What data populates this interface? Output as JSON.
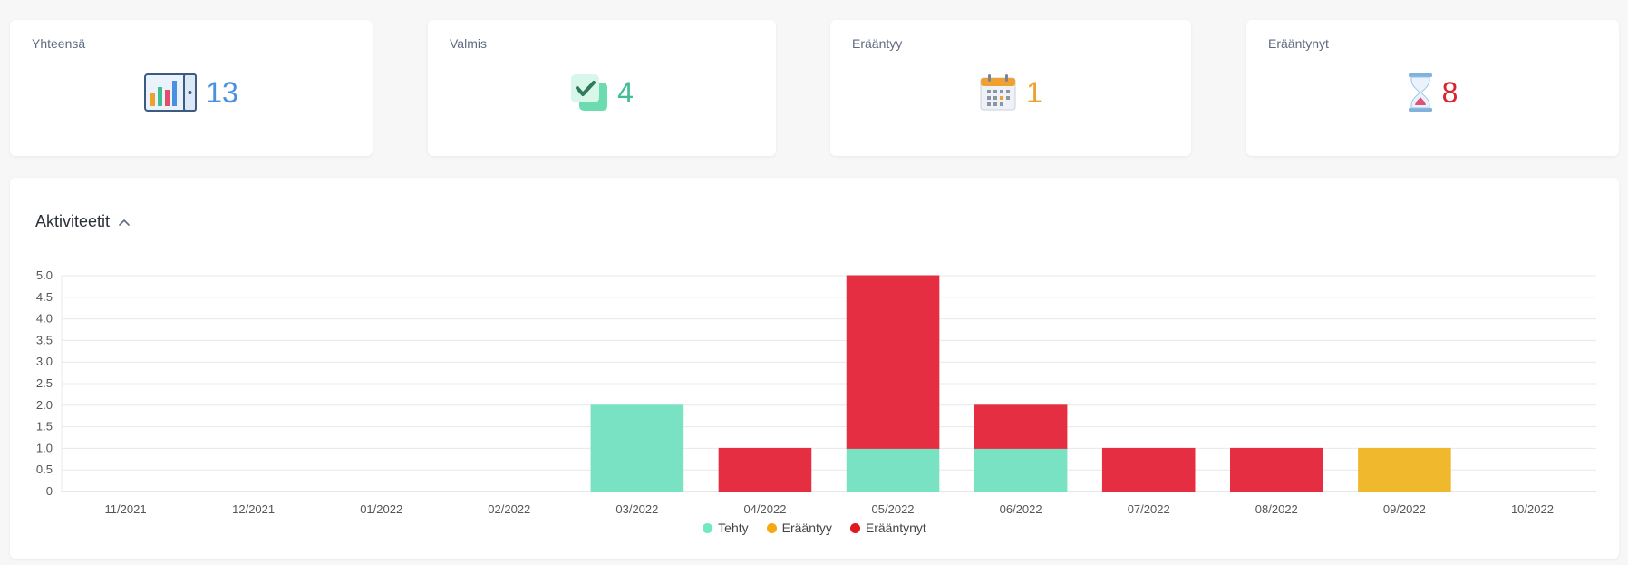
{
  "stats": [
    {
      "title": "Yhteensä",
      "value": "13",
      "color": "#4a90e2",
      "icon": "bar-chart-icon"
    },
    {
      "title": "Valmis",
      "value": "4",
      "color": "#3fbf8f",
      "icon": "checkbox-icon"
    },
    {
      "title": "Erääntyy",
      "value": "1",
      "color": "#f0a030",
      "icon": "calendar-icon"
    },
    {
      "title": "Erääntynyt",
      "value": "8",
      "color": "#d9232e",
      "icon": "hourglass-icon"
    }
  ],
  "activities": {
    "title": "Aktiviteetit",
    "toggle_icon": "chevron-up-icon"
  },
  "chart_data": {
    "type": "bar",
    "stacked": true,
    "categories": [
      "11/2021",
      "12/2021",
      "01/2022",
      "02/2022",
      "03/2022",
      "04/2022",
      "05/2022",
      "06/2022",
      "07/2022",
      "08/2022",
      "09/2022",
      "10/2022"
    ],
    "series": [
      {
        "name": "Tehty",
        "color": "#79e2c2",
        "legend_color": "#6fe8c4",
        "values": [
          0,
          0,
          0,
          0,
          2,
          0,
          1,
          1,
          0,
          0,
          0,
          0
        ]
      },
      {
        "name": "Erääntyy",
        "color": "#f0b82c",
        "legend_color": "#f5a911",
        "values": [
          0,
          0,
          0,
          0,
          0,
          0,
          0,
          0,
          0,
          0,
          1,
          0
        ]
      },
      {
        "name": "Erääntynyt",
        "color": "#e62e42",
        "legend_color": "#e0191f",
        "values": [
          0,
          0,
          0,
          0,
          0,
          1,
          4,
          1,
          1,
          1,
          0,
          0
        ]
      }
    ],
    "y_ticks": [
      "0",
      "0.5",
      "1.0",
      "1.5",
      "2.0",
      "2.5",
      "3.0",
      "3.5",
      "4.0",
      "4.5",
      "5.0"
    ],
    "ylim": [
      0,
      5
    ],
    "grid": true,
    "legend_position": "bottom"
  }
}
